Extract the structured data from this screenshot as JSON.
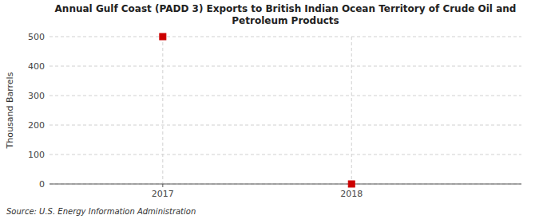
{
  "chart_data": {
    "type": "scatter",
    "title": "Annual Gulf Coast (PADD 3) Exports to British Indian Ocean Territory of Crude Oil and\nPetroleum Products",
    "y_label": "Thousand Barrels",
    "annotation": "Source: U.S. Energy Information Administration",
    "x": [
      2017,
      2018
    ],
    "values": [
      500,
      0
    ],
    "color": "#CC0000",
    "marker": "square",
    "xlim": [
      2016.4,
      2018.9
    ],
    "ylim": [
      0,
      500
    ],
    "xticks": [
      2017,
      2018
    ],
    "yticks": [
      0,
      100,
      200,
      300,
      400,
      500
    ],
    "grid": true
  }
}
